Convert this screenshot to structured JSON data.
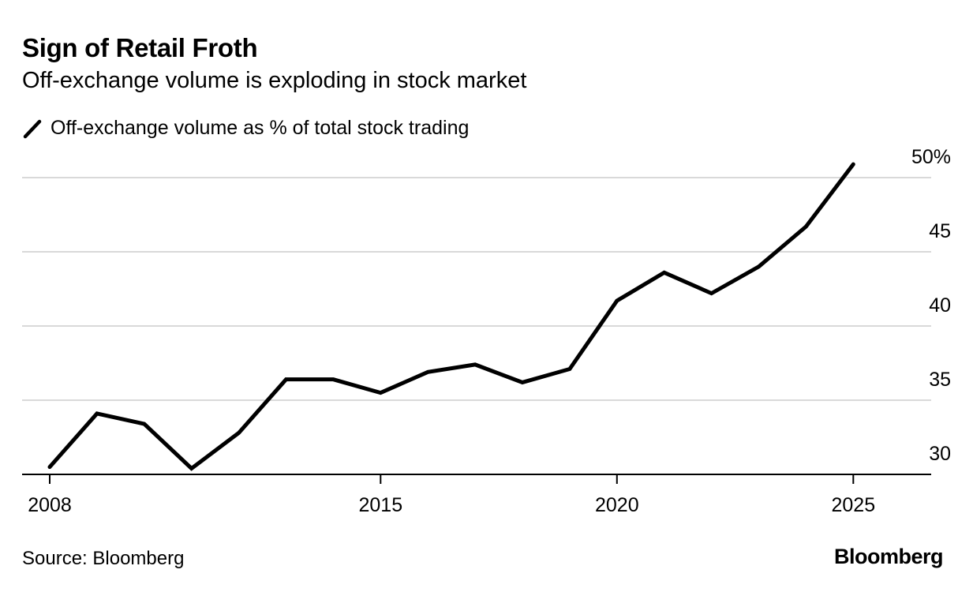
{
  "chart_data": {
    "type": "line",
    "title": "Sign of Retail Froth",
    "subtitle": "Off-exchange volume is exploding in stock market",
    "legend": [
      "Off-exchange volume as % of total stock trading"
    ],
    "legend_placement": "top-left",
    "xlabel": "",
    "ylabel": "",
    "x": [
      2008,
      2009,
      2010,
      2011,
      2012,
      2013,
      2014,
      2015,
      2016,
      2017,
      2018,
      2019,
      2020,
      2021,
      2022,
      2023,
      2024,
      2025
    ],
    "series": [
      {
        "name": "Off-exchange volume as % of total stock trading",
        "values": [
          30.5,
          34.1,
          33.4,
          30.4,
          32.8,
          36.4,
          36.4,
          35.5,
          36.9,
          37.4,
          36.2,
          37.1,
          41.7,
          43.6,
          42.2,
          44.0,
          46.7,
          50.9
        ]
      }
    ],
    "xlim": [
      2007.45,
      2026.6
    ],
    "ylim": [
      30,
      50
    ],
    "x_ticks": [
      2008,
      2015,
      2020,
      2025
    ],
    "x_tick_labels": [
      "2008",
      "2015",
      "2020",
      "2025"
    ],
    "y_ticks": [
      30,
      35,
      40,
      45,
      50
    ],
    "y_tick_labels": [
      "30",
      "35",
      "40",
      "45",
      "50%"
    ],
    "grid": true,
    "source": "Source: Bloomberg",
    "logo": "Bloomberg",
    "colors": {
      "line": "#000000",
      "grid": "#d9d9d9",
      "axis": "#000000"
    }
  }
}
